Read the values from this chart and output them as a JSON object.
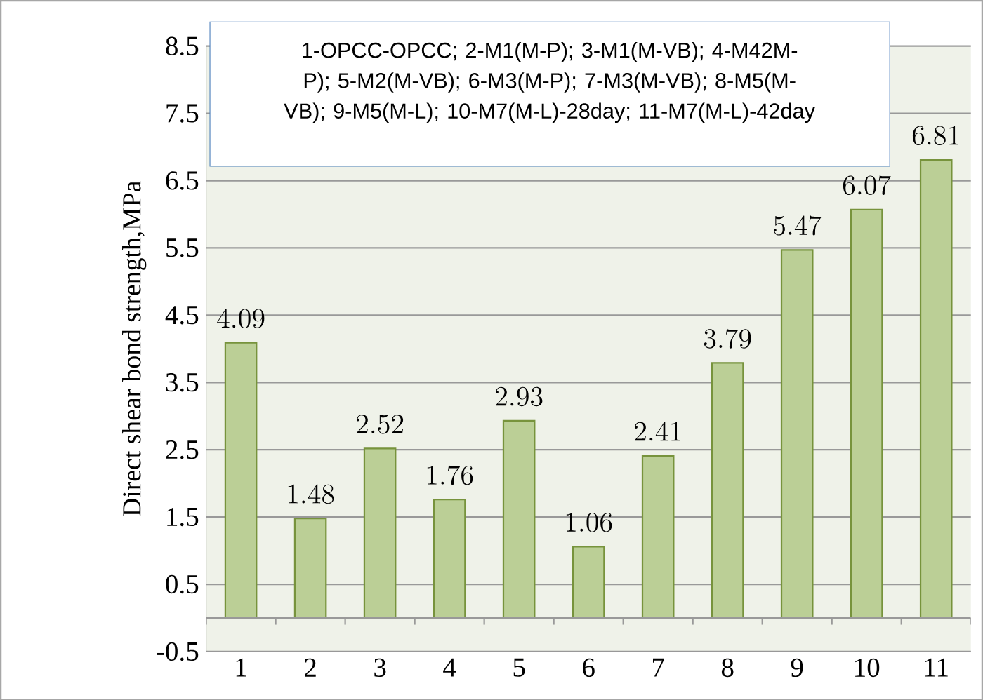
{
  "chart_data": {
    "type": "bar",
    "ylabel": "Direct shear bond strength,MPa",
    "categories": [
      "1",
      "2",
      "3",
      "4",
      "5",
      "6",
      "7",
      "8",
      "9",
      "10",
      "11"
    ],
    "values": [
      4.09,
      1.48,
      2.52,
      1.76,
      2.93,
      1.06,
      2.41,
      3.79,
      5.47,
      6.07,
      6.81
    ],
    "color": "#bbcf96",
    "ylim": [
      -0.5,
      8.5
    ],
    "yticks": [
      -0.5,
      0.5,
      1.5,
      2.5,
      3.5,
      4.5,
      5.5,
      6.5,
      7.5,
      8.5
    ],
    "grid": "y",
    "data_labels": true,
    "annotations": [
      "1-OPCC-OPCC; 2-M1(M-P); 3-M1(M-VB); 4-M42M-P); 5-M2(M-VB); 6-M3(M-P); 7-M3(M-VB); 8-M5(M-VB); 9-M5(M-L); 10-M7(M-L)-28day; 11-M7(M-L)-42day"
    ]
  }
}
